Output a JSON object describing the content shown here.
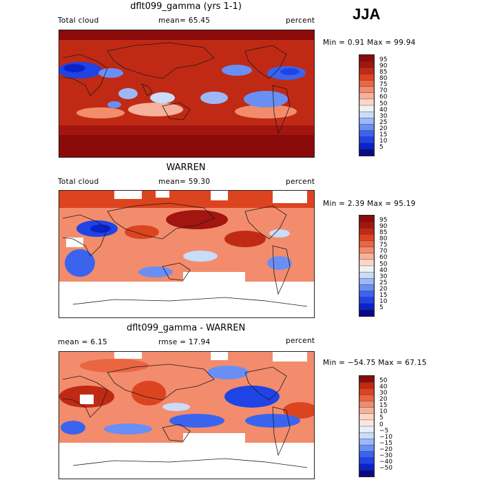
{
  "season": "JJA",
  "panels": [
    {
      "title": "dflt099_gamma (yrs 1-1)",
      "left_label": "Total cloud",
      "center_label": "mean=  65.45",
      "right_label": "percent",
      "minmax": "Min =    0.91 Max =  99.94",
      "colorbar_labels": [
        "95",
        "90",
        "85",
        "80",
        "75",
        "70",
        "60",
        "50",
        "40",
        "30",
        "25",
        "20",
        "15",
        "10",
        "5"
      ]
    },
    {
      "title": "WARREN",
      "left_label": "Total cloud",
      "center_label": "mean=  59.30",
      "right_label": "percent",
      "minmax": "Min =    2.39 Max =  95.19",
      "colorbar_labels": [
        "95",
        "90",
        "85",
        "80",
        "75",
        "70",
        "60",
        "50",
        "40",
        "30",
        "25",
        "20",
        "15",
        "10",
        "5"
      ]
    },
    {
      "title": "dflt099_gamma - WARREN",
      "left_label": "mean =    6.15",
      "center_label": "rmse =   17.94",
      "right_label": "percent",
      "minmax": "Min = −54.75 Max =  67.15",
      "colorbar_labels": [
        "50",
        "40",
        "30",
        "20",
        "15",
        "10",
        "5",
        "0",
        "−5",
        "−10",
        "−15",
        "−20",
        "−30",
        "−40",
        "−50"
      ]
    }
  ],
  "colors": {
    "abs_scale": [
      "#0a0a87",
      "#0c22c8",
      "#1f44e6",
      "#3a64ee",
      "#6a8ff4",
      "#9cb8f7",
      "#c9dcfa",
      "#f2f2f2",
      "#fbd7c8",
      "#f7b19a",
      "#f28c6c",
      "#ea6642",
      "#dc4420",
      "#c02a14",
      "#a31510",
      "#8b0a0a"
    ],
    "diff_scale": [
      "#0a0a87",
      "#0c22c8",
      "#1f44e6",
      "#3a64ee",
      "#6a8ff4",
      "#9cb8f7",
      "#c9dcfa",
      "#e8f0fc",
      "#fde6dc",
      "#fbd7c8",
      "#f7b19a",
      "#f28c6c",
      "#ea6642",
      "#dc4420",
      "#c02a14",
      "#8b0a0a"
    ],
    "missing": "#ffffff",
    "coast": "#1a1a1a"
  }
}
